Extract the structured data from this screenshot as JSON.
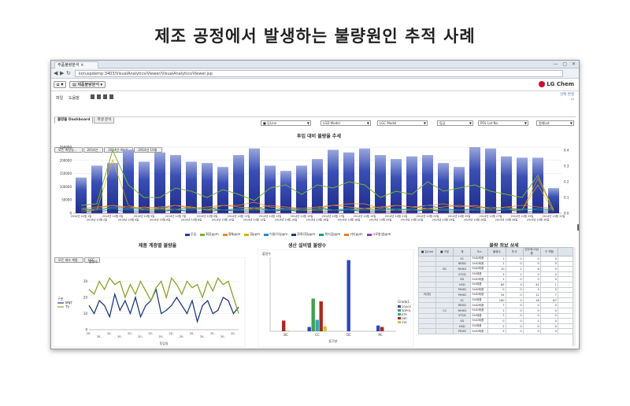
{
  "page_title": "제조 공정에서 발생하는 불량원인 추적 사례",
  "browser": {
    "tab_label": "주품불량분석 ×",
    "window_controls": "— ▢ ✕",
    "url": "koruspdemp:3403/VisualAnalytics/Viewer/VisualAnalytics/Viewer.jsp"
  },
  "app": {
    "home_label": "⌂ ▾",
    "menu_label": "▤ 제품불량분석 ▾",
    "logo_text": "LG Chem",
    "toolbar": {
      "item1": "파일",
      "item2": "도움말"
    },
    "top_links": [
      "선택 변경",
      "▭"
    ]
  },
  "subtabs": [
    "불량율 Dashboard",
    "파생 분석"
  ],
  "filters": [
    "■ 입Line",
    "LGD Model",
    "LGC Model",
    "등급",
    "POL Lot No.",
    "원재Lot"
  ],
  "breadcrumbs_top": [
    "모든 측정일...",
    "2014년",
    "2014년 4분기",
    "2014년 10월"
  ],
  "breadcrumbs_bottom": [
    "모든 제조 계통",
    "LGC"
  ],
  "colors": {
    "bar_dark": "#1f2b8a",
    "bar_light": "#9aa7dd",
    "green": "#7ab33a",
    "orange": "#f08a2b",
    "red": "#c0392b",
    "purple": "#9b59b6",
    "navy": "#1e3c78",
    "olive": "#8ba22e"
  },
  "chart_data": [
    {
      "type": "bar",
      "title": "투입 대비 불량율 추세",
      "categories": [
        "2014년 10월 1일",
        "2014년 10월 2일",
        "2014년 10월 3일",
        "2014년 10월 4일",
        "2014년 10월 5일",
        "2014년 10월 6일",
        "2014년 10월 7일",
        "2014년 10월 8일",
        "2014년 10월 9일",
        "2014년 10월 10일",
        "2014년 10월 11일",
        "2014년 10월 12일",
        "2014년 10월 13일",
        "2014년 10월 14일",
        "2014년 10월 15일",
        "2014년 10월 16일",
        "2014년 10월 17일",
        "2014년 10월 18일",
        "2014년 10월 19일",
        "2014년 10월 20일",
        "2014년 10월 21일",
        "2014년 10월 22일",
        "2014년 10월 23일",
        "2014년 10월 24일",
        "2014년 10월 25일",
        "2014년 10월 26일",
        "2014년 10월 27일",
        "2014년 10월 28일",
        "2014년 10월 29일",
        "2014년 10월 30일",
        "2014년 10월 31일"
      ],
      "values": [
        135000,
        180000,
        190000,
        240000,
        195000,
        230000,
        220000,
        195000,
        190000,
        175000,
        220000,
        245000,
        180000,
        160000,
        180000,
        205000,
        240000,
        230000,
        245000,
        220000,
        205000,
        215000,
        220000,
        190000,
        175000,
        250000,
        245000,
        215000,
        210000,
        210000,
        95000
      ],
      "ylim": [
        0,
        250000
      ],
      "y_ticks": [
        0,
        50000,
        100000,
        150000,
        200000,
        250000
      ],
      "y2_ticks": [
        0.0,
        0.1,
        0.2,
        0.3,
        0.4
      ],
      "y2lim": [
        0,
        0.42
      ],
      "series": [
        {
          "name": "투입",
          "values": [
            135000,
            180000,
            190000,
            240000,
            195000,
            230000,
            220000,
            195000,
            190000,
            175000,
            220000,
            245000,
            180000,
            160000,
            180000,
            205000,
            240000,
            230000,
            245000,
            220000,
            205000,
            215000,
            220000,
            190000,
            175000,
            250000,
            245000,
            215000,
            210000,
            210000,
            95000
          ]
        },
        {
          "name": "휘장ppm",
          "values": [
            0.05,
            0.06,
            0.4,
            0.18,
            0.1,
            0.1,
            0.16,
            0.14,
            0.1,
            0.15,
            0.12,
            0.08,
            0.16,
            0.18,
            0.12,
            0.18,
            0.16,
            0.2,
            0.18,
            0.1,
            0.14,
            0.12,
            0.2,
            0.14,
            0.16,
            0.18,
            0.14,
            0.12,
            0.1,
            0.24,
            0.02
          ]
        },
        {
          "name": "휘Nppm",
          "values": [
            0.02,
            0.03,
            0.05,
            0.03,
            0.04,
            0.03,
            0.05,
            0.04,
            0.02,
            0.05,
            0.05,
            0.07,
            0.04,
            0.03,
            0.02,
            0.03,
            0.05,
            0.06,
            0.06,
            0.03,
            0.05,
            0.04,
            0.05,
            0.06,
            0.04,
            0.05,
            0.03,
            0.04,
            0.02,
            0.22,
            0.02
          ]
        },
        {
          "name": "휘ppm",
          "values": [
            0.01,
            0.02,
            0.34,
            0.05,
            0.02,
            0.03,
            0.02,
            0.04,
            0.02,
            0.02,
            0.02,
            0.03,
            0.02,
            0.02,
            0.02,
            0.02,
            0.02,
            0.02,
            0.03,
            0.02,
            0.02,
            0.02,
            0.03,
            0.02,
            0.02,
            0.02,
            0.02,
            0.02,
            0.02,
            0.18,
            0.01
          ]
        },
        {
          "name": "이물(이)ppm",
          "values": [
            0.03,
            0.02,
            0.04,
            0.03,
            0.03,
            0.04,
            0.03,
            0.03,
            0.04,
            0.02,
            0.03,
            0.04,
            0.02,
            0.03,
            0.03,
            0.04,
            0.02,
            0.03,
            0.03,
            0.04,
            0.02,
            0.03,
            0.05,
            0.03,
            0.02,
            0.03,
            0.04,
            0.03,
            0.02,
            0.03,
            0.02
          ]
        },
        {
          "name": "휘록(휘)ppm",
          "values": [
            0.01,
            0.01,
            0.02,
            0.01,
            0.01,
            0.01,
            0.02,
            0.01,
            0.01,
            0.02,
            0.01,
            0.01,
            0.01,
            0.02,
            0.01,
            0.01,
            0.01,
            0.02,
            0.01,
            0.01,
            0.01,
            0.01,
            0.02,
            0.01,
            0.01,
            0.01,
            0.01,
            0.02,
            0.01,
            0.01,
            0.01
          ]
        },
        {
          "name": "찍기검ppm",
          "values": [
            0.02,
            0.02,
            0.03,
            0.02,
            0.02,
            0.02,
            0.02,
            0.02,
            0.03,
            0.02,
            0.02,
            0.02,
            0.02,
            0.02,
            0.02,
            0.03,
            0.02,
            0.02,
            0.02,
            0.02,
            0.03,
            0.02,
            0.02,
            0.02,
            0.02,
            0.02,
            0.02,
            0.02,
            0.03,
            0.02,
            0.02
          ]
        },
        {
          "name": "기타ppm",
          "values": [
            0.03,
            0.04,
            0.05,
            0.04,
            0.03,
            0.04,
            0.05,
            0.03,
            0.04,
            0.05,
            0.04,
            0.03,
            0.05,
            0.04,
            0.03,
            0.04,
            0.05,
            0.04,
            0.03,
            0.04,
            0.05,
            0.04,
            0.03,
            0.04,
            0.05,
            0.04,
            0.03,
            0.04,
            0.05,
            0.04,
            0.03
          ]
        },
        {
          "name": "시료발생ppm",
          "values": [
            0.0,
            0.0,
            0.0,
            0.0,
            0.0,
            0.0,
            0.0,
            0.0,
            0.0,
            0.0,
            0.0,
            0.0,
            0.0,
            0.0,
            0.0,
            0.0,
            0.0,
            0.0,
            0.0,
            0.0,
            0.0,
            0.0,
            0.0,
            0.0,
            0.0,
            0.0,
            0.0,
            0.0,
            0.0,
            0.0,
            0.0
          ]
        }
      ]
    },
    {
      "type": "line",
      "title": "제품 계층별 불량율",
      "ylabel": "불량수",
      "xlabel": "투입일",
      "ylim": [
        0,
        40
      ],
      "y_ticks": [
        0,
        10,
        20,
        30
      ],
      "legend_title": "구분",
      "x_tick_label": "20..",
      "series": [
        {
          "name": "MNT",
          "values": [
            15,
            10,
            18,
            15,
            8,
            22,
            12,
            18,
            10,
            20,
            8,
            15,
            18,
            25,
            10,
            12,
            15,
            20,
            15,
            10,
            18,
            5,
            15,
            18,
            10,
            12,
            20,
            18,
            10,
            14
          ]
        },
        {
          "name": "TV",
          "values": [
            25,
            22,
            30,
            25,
            32,
            28,
            30,
            20,
            28,
            22,
            30,
            24,
            18,
            26,
            30,
            20,
            32,
            28,
            22,
            30,
            26,
            28,
            20,
            30,
            24,
            32,
            28,
            30,
            20,
            10
          ]
        }
      ]
    },
    {
      "type": "bar",
      "title": "생산 설비별 불량수",
      "ylabel": "불량수",
      "xlabel": "등구분",
      "categories": [
        "BC",
        "CC",
        "DC",
        "RC"
      ],
      "legend_title": "Grade1",
      "series": [
        {
          "name": "2GACE",
          "values": [
            0,
            30,
            500,
            40
          ]
        },
        {
          "name": "3DPOL",
          "values": [
            0,
            230,
            0,
            0
          ]
        },
        {
          "name": "ATR",
          "values": [
            0,
            80,
            0,
            0
          ]
        },
        {
          "name": "NRT",
          "values": [
            75,
            210,
            0,
            30
          ]
        },
        {
          "name": "YYK",
          "values": [
            5,
            35,
            0,
            0
          ]
        }
      ],
      "ylim": [
        0,
        520
      ]
    }
  ],
  "detail_table": {
    "title": "불량 정보 상세",
    "headers": [
      "■ 입Line",
      "■ 구분",
      "계",
      "Src",
      "불량수",
      "투사",
      "업무에 이상 품",
      "구 격합",
      ""
    ],
    "rows": [
      [
        "",
        "",
        "",
        "ShiD제품",
        "1",
        "0",
        "0",
        "0"
      ],
      [
        "",
        "",
        "",
        "ShiD제품",
        "1",
        "0",
        "0",
        "0"
      ],
      [
        "",
        "BC",
        "",
        "ShiD제품",
        "10",
        "1",
        "8",
        "5"
      ],
      [
        "",
        "",
        "",
        "Shi제품",
        "3",
        "1",
        "0",
        "0"
      ],
      [
        "",
        "",
        "",
        "ShiD제품",
        "1",
        "0",
        "0",
        "0"
      ],
      [
        "",
        "",
        "",
        "Shi제품",
        "65",
        "3",
        "41",
        "1"
      ],
      [
        "",
        "",
        "",
        "ShiD제품",
        "0",
        "0",
        "0",
        "0"
      ],
      [
        "",
        "",
        "",
        "ShiD제품",
        "54",
        "0",
        "12",
        "7"
      ],
      [
        "",
        "",
        "",
        "Shi제품",
        "160",
        "0",
        "18",
        "87"
      ],
      [
        "",
        "",
        "",
        "ShiD제품",
        "7",
        "0",
        "0",
        "0"
      ],
      [
        "",
        "CC",
        "",
        "ShiD제품",
        "1",
        "0",
        "0",
        "0"
      ],
      [
        "",
        "",
        "",
        "Shi제품",
        "7",
        "0",
        "0",
        "0"
      ],
      [
        "",
        "",
        "",
        "ShiD제품",
        "0",
        "0",
        "1",
        "0"
      ],
      [
        "",
        "",
        "",
        "Shi제품",
        "2",
        "0",
        "0",
        "0"
      ],
      [
        "",
        "",
        "",
        "ShiD제품",
        "3",
        "0",
        "0",
        "0"
      ]
    ],
    "line_label": "이(현)",
    "sub_labels": [
      "SC",
      "RBSD",
      "RHHD",
      "XTSD",
      "SD",
      "HSD",
      "PHHD",
      "PHHD"
    ]
  }
}
